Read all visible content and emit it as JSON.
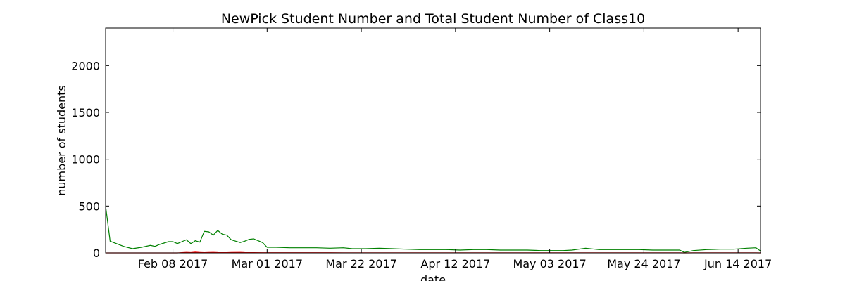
{
  "chart_data": {
    "type": "line",
    "title": "NewPick Student Number and Total Student Number of Class10",
    "xlabel": "date",
    "ylabel": "number of students",
    "ylim": [
      0,
      2400
    ],
    "yticks": [
      0,
      500,
      1000,
      1500,
      2000
    ],
    "xlim": [
      "2017-01-24",
      "2017-06-19"
    ],
    "xticks": [
      {
        "date": "2017-02-08",
        "label": "Feb 08 2017"
      },
      {
        "date": "2017-03-01",
        "label": "Mar 01 2017"
      },
      {
        "date": "2017-03-22",
        "label": "Mar 22 2017"
      },
      {
        "date": "2017-04-12",
        "label": "Apr 12 2017"
      },
      {
        "date": "2017-05-03",
        "label": "May 03 2017"
      },
      {
        "date": "2017-05-24",
        "label": "May 24 2017"
      },
      {
        "date": "2017-06-14",
        "label": "Jun 14 2017"
      }
    ],
    "grid": false,
    "x": [
      "2017-01-24",
      "2017-01-25",
      "2017-01-28",
      "2017-01-30",
      "2017-02-01",
      "2017-02-03",
      "2017-02-04",
      "2017-02-05",
      "2017-02-07",
      "2017-02-08",
      "2017-02-09",
      "2017-02-10",
      "2017-02-11",
      "2017-02-12",
      "2017-02-13",
      "2017-02-14",
      "2017-02-15",
      "2017-02-16",
      "2017-02-17",
      "2017-02-18",
      "2017-02-19",
      "2017-02-20",
      "2017-02-21",
      "2017-02-23",
      "2017-02-24",
      "2017-02-25",
      "2017-02-26",
      "2017-02-28",
      "2017-03-01",
      "2017-03-03",
      "2017-03-06",
      "2017-03-09",
      "2017-03-12",
      "2017-03-15",
      "2017-03-18",
      "2017-03-20",
      "2017-03-23",
      "2017-03-26",
      "2017-03-29",
      "2017-04-01",
      "2017-04-04",
      "2017-04-07",
      "2017-04-10",
      "2017-04-13",
      "2017-04-16",
      "2017-04-19",
      "2017-04-22",
      "2017-04-25",
      "2017-04-28",
      "2017-05-01",
      "2017-05-04",
      "2017-05-06",
      "2017-05-08",
      "2017-05-11",
      "2017-05-14",
      "2017-05-17",
      "2017-05-20",
      "2017-05-23",
      "2017-05-26",
      "2017-05-29",
      "2017-06-01",
      "2017-06-02",
      "2017-06-04",
      "2017-06-07",
      "2017-06-10",
      "2017-06-13",
      "2017-06-16",
      "2017-06-18",
      "2017-06-19"
    ],
    "series": [
      {
        "color": "#008000",
        "values": [
          500,
          125,
          70,
          45,
          60,
          80,
          70,
          90,
          120,
          120,
          100,
          120,
          140,
          100,
          130,
          115,
          230,
          225,
          190,
          240,
          200,
          190,
          140,
          110,
          125,
          145,
          150,
          110,
          60,
          60,
          55,
          55,
          55,
          50,
          55,
          45,
          45,
          50,
          45,
          40,
          35,
          35,
          35,
          30,
          35,
          35,
          30,
          30,
          30,
          25,
          25,
          25,
          30,
          50,
          35,
          35,
          35,
          35,
          30,
          30,
          30,
          5,
          25,
          35,
          40,
          40,
          50,
          55,
          20
        ]
      },
      {
        "color": "#ff0000",
        "values": [
          0,
          0,
          0,
          0,
          0,
          0,
          0,
          0,
          0,
          0,
          0,
          3,
          6,
          4,
          8,
          5,
          3,
          5,
          6,
          4,
          3,
          3,
          5,
          6,
          4,
          3,
          3,
          2,
          2,
          2,
          2,
          2,
          2,
          2,
          1,
          1,
          1,
          1,
          1,
          1,
          1,
          1,
          1,
          1,
          1,
          1,
          1,
          1,
          1,
          1,
          1,
          1,
          1,
          1,
          1,
          1,
          1,
          1,
          1,
          1,
          1,
          0,
          1,
          1,
          1,
          1,
          1,
          1,
          0
        ]
      }
    ]
  }
}
